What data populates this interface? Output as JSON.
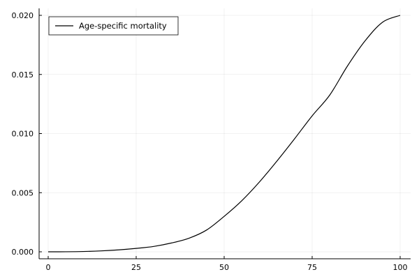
{
  "chart_data": {
    "type": "line",
    "title": "",
    "xlabel": "",
    "ylabel": "",
    "xlim": [
      0,
      100
    ],
    "ylim": [
      0,
      0.02
    ],
    "x_ticks": [
      0,
      25,
      50,
      75,
      100
    ],
    "x_tick_labels": [
      "0",
      "25",
      "50",
      "75",
      "100"
    ],
    "y_ticks": [
      0,
      0.005,
      0.01,
      0.015,
      0.02
    ],
    "y_tick_labels": [
      "0.000",
      "0.005",
      "0.010",
      "0.015",
      "0.020"
    ],
    "grid": true,
    "legend": {
      "position": "top-left",
      "entries": [
        "Age-specific mortality"
      ]
    },
    "series": [
      {
        "name": "Age-specific mortality",
        "color": "#000000",
        "x": [
          0,
          5,
          10,
          15,
          20,
          25,
          30,
          35,
          40,
          45,
          50,
          55,
          60,
          65,
          70,
          75,
          80,
          85,
          90,
          95,
          100
        ],
        "y": [
          0.0,
          3.8e-06,
          2.64e-05,
          7.78e-05,
          0.0001632,
          0.0002868,
          0.0004544,
          0.000744,
          0.00115,
          0.00184,
          0.003,
          0.00432,
          0.0059,
          0.00768,
          0.00956,
          0.0115,
          0.01326,
          0.0157,
          0.01783,
          0.01942,
          0.02
        ]
      }
    ]
  }
}
